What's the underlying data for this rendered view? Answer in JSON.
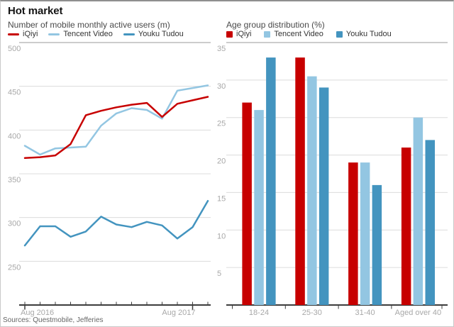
{
  "card": {
    "title": "Hot market",
    "source": "Sources: Questmobile, Jefferies"
  },
  "colors": {
    "iqiyi": "#c70000",
    "tencent": "#93c6e2",
    "youku": "#4394bf",
    "grid": "#dcdcdc",
    "rule": "#999999",
    "axis": "#3c3c3c",
    "tick_label": "#a8a8a8",
    "legend_text": "#333333"
  },
  "chart_data": [
    {
      "type": "line",
      "title": "Number of mobile monthly active users (m)",
      "ylabel": "",
      "ylim": [
        200,
        500
      ],
      "yticks": [
        250,
        300,
        350,
        400,
        450,
        500
      ],
      "grid": true,
      "legend_position": "top",
      "x_axis_labels": [
        {
          "label": "Aug 2016",
          "index": 0
        },
        {
          "label": "Aug 2017",
          "index": 11
        }
      ],
      "points_count": 13,
      "series": [
        {
          "name": "iQiyi",
          "color_key": "iqiyi",
          "values": [
            368,
            369,
            371,
            384,
            417,
            422,
            426,
            429,
            431,
            415,
            430,
            434,
            438
          ]
        },
        {
          "name": "Tencent Video",
          "color_key": "tencent",
          "values": [
            382,
            372,
            379,
            380,
            381,
            405,
            419,
            425,
            423,
            413,
            445,
            448,
            451
          ]
        },
        {
          "name": "Youku Tudou",
          "color_key": "youku",
          "values": [
            268,
            290,
            290,
            278,
            284,
            301,
            292,
            289,
            295,
            291,
            276,
            289,
            319
          ]
        }
      ]
    },
    {
      "type": "bar",
      "title": "Age group distribution (%)",
      "ylabel": "",
      "ylim": [
        0,
        35
      ],
      "yticks": [
        5,
        10,
        15,
        20,
        25,
        30,
        35
      ],
      "grid": true,
      "legend_position": "top",
      "categories": [
        "18-24",
        "25-30",
        "31-40",
        "Aged over 40"
      ],
      "series": [
        {
          "name": "iQiyi",
          "color_key": "iqiyi",
          "values": [
            27,
            33,
            19,
            21
          ]
        },
        {
          "name": "Tencent Video",
          "color_key": "tencent",
          "values": [
            26,
            30.5,
            19,
            25
          ]
        },
        {
          "name": "Youku Tudou",
          "color_key": "youku",
          "values": [
            33,
            29,
            16,
            22
          ]
        }
      ]
    }
  ]
}
